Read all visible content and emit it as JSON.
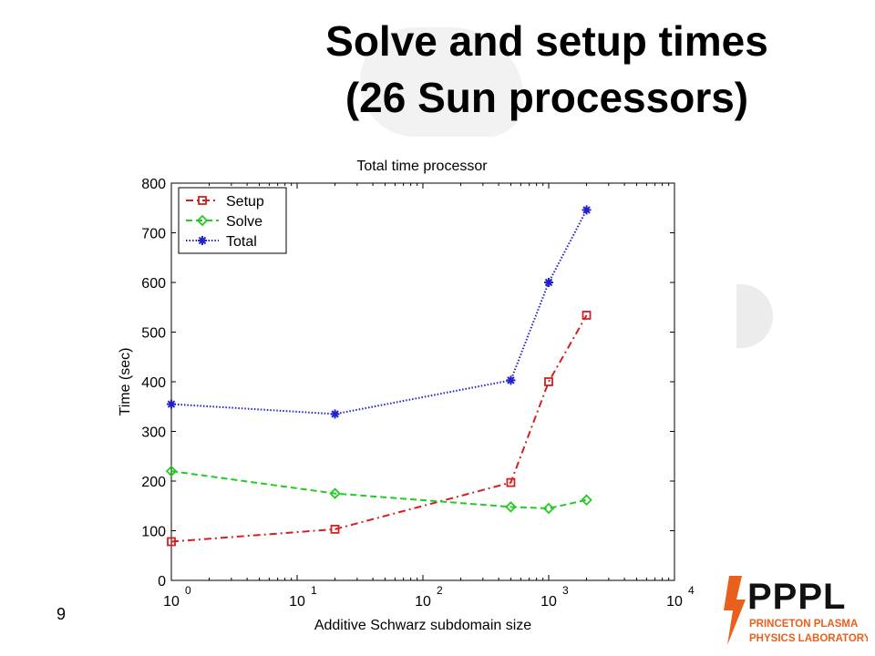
{
  "slide": {
    "title_line1": "Solve and setup times",
    "title_line2": "(26 Sun processors)",
    "page_number": "9"
  },
  "logo": {
    "text": "PPPL",
    "line1": "PRINCETON PLASMA",
    "line2": "PHYSICS LABORATORY",
    "colors": {
      "primary": "#111111",
      "accent": "#e8601c"
    }
  },
  "chart_data": {
    "type": "line",
    "title": "Total time processor",
    "xlabel": "Additive Schwarz subdomain size",
    "ylabel": "Time (sec)",
    "xscale": "log",
    "xlim": [
      1,
      10000
    ],
    "ylim": [
      0,
      800
    ],
    "x_ticks": [
      {
        "value": 1,
        "base": "10",
        "exp": "0"
      },
      {
        "value": 10,
        "base": "10",
        "exp": "1"
      },
      {
        "value": 100,
        "base": "10",
        "exp": "2"
      },
      {
        "value": 1000,
        "base": "10",
        "exp": "3"
      },
      {
        "value": 10000,
        "base": "10",
        "exp": "4"
      }
    ],
    "y_ticks": [
      "0",
      "100",
      "200",
      "300",
      "400",
      "500",
      "600",
      "700",
      "800"
    ],
    "grid": false,
    "legend_position": "top-left",
    "x": [
      1,
      20,
      500,
      1000,
      2000
    ],
    "series": [
      {
        "name": "Setup",
        "values": [
          78,
          103,
          197,
          400,
          534
        ],
        "color": "#d42020",
        "dash": "dash-dot",
        "marker": "square"
      },
      {
        "name": "Solve",
        "values": [
          220,
          175,
          148,
          145,
          162
        ],
        "color": "#22cc22",
        "dash": "dashed",
        "marker": "diamond"
      },
      {
        "name": "Total",
        "values": [
          355,
          335,
          403,
          600,
          746
        ],
        "color": "#2020cc",
        "dash": "dotted",
        "marker": "star"
      }
    ]
  }
}
